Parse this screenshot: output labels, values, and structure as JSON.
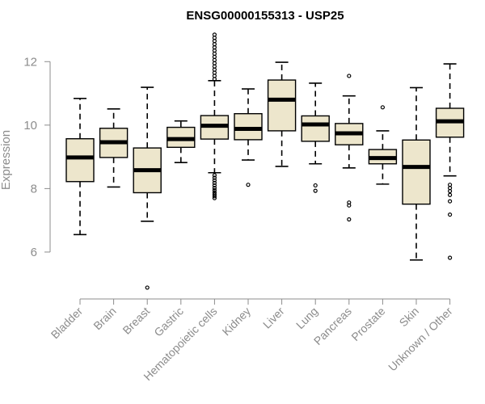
{
  "chart_data": {
    "type": "box",
    "title": "ENSG00000155313 - USP25",
    "xlabel": "",
    "ylabel": "Expression",
    "ylim": [
      4.7,
      13.0
    ],
    "yticks": [
      6,
      8,
      10,
      12
    ],
    "box_fill": "#ede6cc",
    "grid": false,
    "categories": [
      "Bladder",
      "Brain",
      "Breast",
      "Gastric",
      "Hematopoietic cells",
      "Kidney",
      "Liver",
      "Lung",
      "Pancreas",
      "Prostate",
      "Skin",
      "Unknown / Other"
    ],
    "boxes": [
      {
        "whisker_low": 6.55,
        "q1": 8.22,
        "median": 8.98,
        "q3": 9.57,
        "whisker_high": 10.84,
        "outliers": []
      },
      {
        "whisker_low": 8.05,
        "q1": 8.98,
        "median": 9.46,
        "q3": 9.9,
        "whisker_high": 10.51,
        "outliers": []
      },
      {
        "whisker_low": 6.97,
        "q1": 7.87,
        "median": 8.58,
        "q3": 9.28,
        "whisker_high": 11.19,
        "outliers": [
          4.88
        ]
      },
      {
        "whisker_low": 8.82,
        "q1": 9.3,
        "median": 9.56,
        "q3": 9.93,
        "whisker_high": 10.13,
        "outliers": []
      },
      {
        "whisker_low": 8.5,
        "q1": 9.56,
        "median": 9.98,
        "q3": 10.3,
        "whisker_high": 11.4,
        "outliers": [
          7.7,
          7.76,
          7.82,
          7.88,
          7.95,
          8.02,
          8.1,
          8.18,
          8.26,
          8.34,
          8.42,
          11.45,
          11.55,
          11.65,
          11.75,
          11.85,
          11.95,
          12.05,
          12.15,
          12.25,
          12.35,
          12.45,
          12.55,
          12.65,
          12.75,
          12.85
        ]
      },
      {
        "whisker_low": 8.9,
        "q1": 9.54,
        "median": 9.88,
        "q3": 10.36,
        "whisker_high": 11.14,
        "outliers": [
          8.12
        ]
      },
      {
        "whisker_low": 8.7,
        "q1": 9.82,
        "median": 10.8,
        "q3": 11.42,
        "whisker_high": 11.98,
        "outliers": []
      },
      {
        "whisker_low": 8.78,
        "q1": 9.49,
        "median": 10.02,
        "q3": 10.29,
        "whisker_high": 11.32,
        "outliers": [
          7.93,
          8.1
        ]
      },
      {
        "whisker_low": 8.65,
        "q1": 9.38,
        "median": 9.74,
        "q3": 10.05,
        "whisker_high": 10.92,
        "outliers": [
          7.03,
          7.47,
          7.56,
          11.55
        ]
      },
      {
        "whisker_low": 8.14,
        "q1": 8.78,
        "median": 8.96,
        "q3": 9.23,
        "whisker_high": 9.82,
        "outliers": [
          10.56
        ]
      },
      {
        "whisker_low": 5.75,
        "q1": 7.51,
        "median": 8.68,
        "q3": 9.53,
        "whisker_high": 11.18,
        "outliers": []
      },
      {
        "whisker_low": 8.4,
        "q1": 9.62,
        "median": 10.12,
        "q3": 10.53,
        "whisker_high": 11.93,
        "outliers": [
          5.82,
          7.18,
          7.6,
          7.8,
          7.92,
          8.02,
          8.12
        ]
      }
    ]
  }
}
